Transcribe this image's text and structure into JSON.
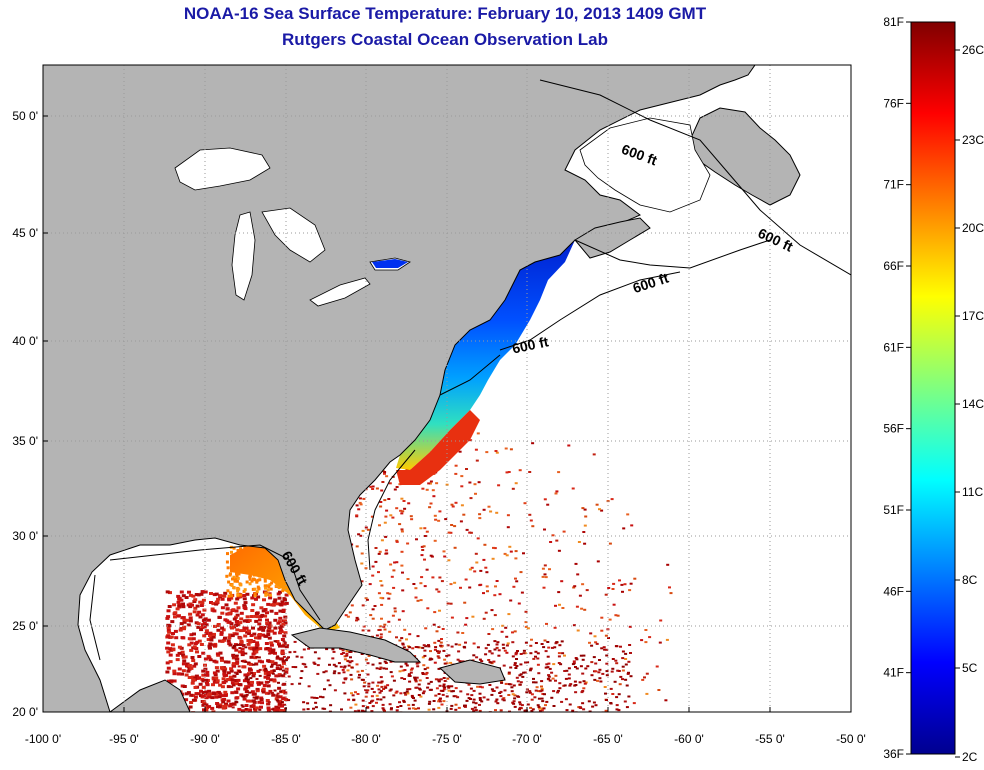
{
  "title": "NOAA-16 Sea Surface Temperature:  February 10, 2013 1409 GMT",
  "subtitle": "Rutgers Coastal Ocean Observation Lab",
  "axes": {
    "lat_labels": [
      "50 0'",
      "45 0'",
      "40 0'",
      "35 0'",
      "30 0'",
      "25 0'",
      "20 0'"
    ],
    "lon_labels": [
      "-100 0'",
      "-95 0'",
      "-90 0'",
      "-85 0'",
      "-80 0'",
      "-75 0'",
      "-70 0'",
      "-65 0'",
      "-60 0'",
      "-55 0'",
      "-50 0'"
    ]
  },
  "contours": {
    "label": "600 ft",
    "label_count": 5
  },
  "colorbar": {
    "fahrenheit_labels": [
      "81F",
      "76F",
      "71F",
      "66F",
      "61F",
      "56F",
      "51F",
      "46F",
      "41F",
      "36F"
    ],
    "celsius_labels": [
      "26C",
      "23C",
      "20C",
      "17C",
      "14C",
      "11C",
      "8C",
      "5C",
      "2C"
    ],
    "colormap": "jet",
    "min_f": 36,
    "max_f": 81
  },
  "colors": {
    "land": "#b4b4b4",
    "title": "#1a1aa6",
    "ocean_nodata": "#ffffff",
    "grid": "#9a9a9a"
  }
}
